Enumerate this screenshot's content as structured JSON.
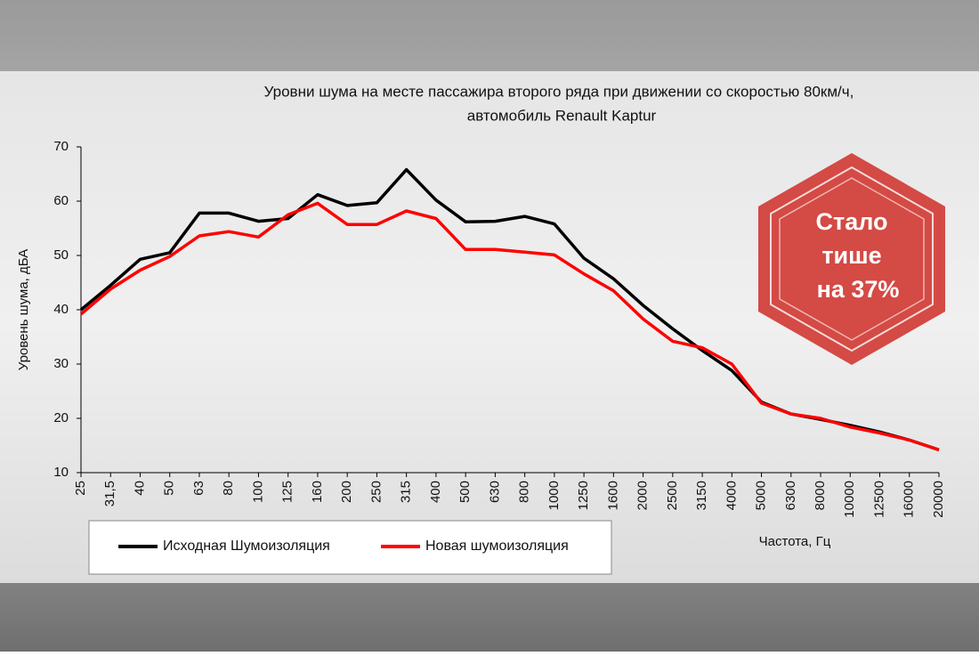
{
  "chart_data": {
    "type": "line",
    "title": [
      "Уровни шума на месте пассажира второго ряда при движении со скоростью  80км/ч,",
      "автомобиль  Renault Kaptur"
    ],
    "y_label": "Уровень шума, дБА",
    "x_label": "Частота, Гц",
    "annotation": [
      "Стало",
      "тише",
      "на 37%"
    ],
    "categories": [
      "25",
      "31,5",
      "40",
      "50",
      "63",
      "80",
      "100",
      "125",
      "160",
      "200",
      "250",
      "315",
      "400",
      "500",
      "630",
      "800",
      "1000",
      "1250",
      "1600",
      "2000",
      "2500",
      "3150",
      "4000",
      "5000",
      "6300",
      "8000",
      "10000",
      "12500",
      "16000",
      "20000"
    ],
    "series": [
      {
        "name": "Исходная Шумоизоляция",
        "color": "#000000",
        "values": [
          40,
          44.5,
          49.3,
          50.5,
          57.8,
          57.8,
          56.3,
          56.8,
          61.2,
          59.2,
          59.7,
          65.8,
          60.2,
          56.2,
          56.3,
          57.2,
          55.8,
          49.5,
          45.7,
          40.8,
          36.5,
          32.5,
          28.8,
          23,
          20.8,
          19.8,
          18.7,
          17.5,
          16,
          14.2
        ]
      },
      {
        "name": "Новая шумоизоляция",
        "color": "#ff0000",
        "values": [
          39.2,
          43.8,
          47.3,
          49.8,
          53.6,
          54.4,
          53.4,
          57.5,
          59.6,
          55.7,
          55.7,
          58.2,
          56.8,
          51.1,
          51.1,
          50.6,
          50.1,
          46.6,
          43.5,
          38.3,
          34.2,
          33,
          30,
          22.8,
          20.8,
          20,
          18.4,
          17.3,
          16,
          14.2
        ]
      }
    ],
    "ylim": [
      10,
      70
    ],
    "yticks": [
      10,
      20,
      30,
      40,
      50,
      60,
      70
    ],
    "grid": false
  }
}
